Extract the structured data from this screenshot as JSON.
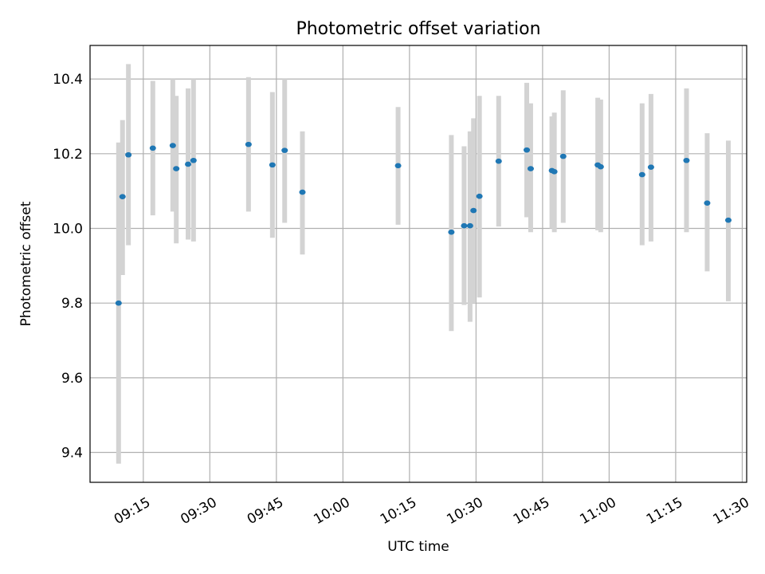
{
  "chart_data": {
    "type": "scatter",
    "title": "Photometric offset variation",
    "xlabel": "UTC time",
    "ylabel": "Photometric offset",
    "xlim": [
      "09:03",
      "11:31"
    ],
    "ylim": [
      9.32,
      10.49
    ],
    "grid": true,
    "x_ticks": [
      "09:15",
      "09:30",
      "09:45",
      "10:00",
      "10:15",
      "10:30",
      "10:45",
      "11:00",
      "11:15",
      "11:30"
    ],
    "y_ticks": [
      "9.4",
      "9.6",
      "9.8",
      "10.0",
      "10.2",
      "10.4"
    ],
    "error_color": "#d3d3d3",
    "marker_color": "#1f77b4",
    "points": [
      {
        "t": "09:09:26",
        "y": 9.8,
        "lo": 9.37,
        "hi": 10.23
      },
      {
        "t": "09:10:19",
        "y": 10.085,
        "lo": 9.875,
        "hi": 10.29
      },
      {
        "t": "09:11:39",
        "y": 10.197,
        "lo": 9.955,
        "hi": 10.44
      },
      {
        "t": "09:17:09",
        "y": 10.215,
        "lo": 10.035,
        "hi": 10.395
      },
      {
        "t": "09:21:39",
        "y": 10.222,
        "lo": 10.045,
        "hi": 10.4
      },
      {
        "t": "09:22:26",
        "y": 10.16,
        "lo": 9.96,
        "hi": 10.355
      },
      {
        "t": "09:25:06",
        "y": 10.172,
        "lo": 9.97,
        "hi": 10.375
      },
      {
        "t": "09:26:19",
        "y": 10.182,
        "lo": 9.965,
        "hi": 10.4
      },
      {
        "t": "09:38:43",
        "y": 10.225,
        "lo": 10.045,
        "hi": 10.405
      },
      {
        "t": "09:44:06",
        "y": 10.17,
        "lo": 9.975,
        "hi": 10.365
      },
      {
        "t": "09:46:52",
        "y": 10.209,
        "lo": 10.015,
        "hi": 10.4
      },
      {
        "t": "09:50:52",
        "y": 10.097,
        "lo": 9.93,
        "hi": 10.26
      },
      {
        "t": "10:12:26",
        "y": 10.168,
        "lo": 10.01,
        "hi": 10.325
      },
      {
        "t": "10:24:26",
        "y": 9.99,
        "lo": 9.725,
        "hi": 10.25
      },
      {
        "t": "10:27:19",
        "y": 10.007,
        "lo": 9.795,
        "hi": 10.22
      },
      {
        "t": "10:28:39",
        "y": 10.007,
        "lo": 9.75,
        "hi": 10.26
      },
      {
        "t": "10:29:26",
        "y": 10.048,
        "lo": 9.8,
        "hi": 10.295
      },
      {
        "t": "10:30:46",
        "y": 10.086,
        "lo": 9.815,
        "hi": 10.355
      },
      {
        "t": "10:35:06",
        "y": 10.18,
        "lo": 10.005,
        "hi": 10.355
      },
      {
        "t": "10:41:26",
        "y": 10.21,
        "lo": 10.03,
        "hi": 10.39
      },
      {
        "t": "10:42:19",
        "y": 10.16,
        "lo": 9.99,
        "hi": 10.335
      },
      {
        "t": "10:47:06",
        "y": 10.155,
        "lo": 10.0,
        "hi": 10.3
      },
      {
        "t": "10:47:39",
        "y": 10.152,
        "lo": 9.99,
        "hi": 10.31
      },
      {
        "t": "10:49:39",
        "y": 10.193,
        "lo": 10.015,
        "hi": 10.37
      },
      {
        "t": "10:57:26",
        "y": 10.17,
        "lo": 9.995,
        "hi": 10.35
      },
      {
        "t": "10:58:06",
        "y": 10.165,
        "lo": 9.99,
        "hi": 10.345
      },
      {
        "t": "11:07:26",
        "y": 10.144,
        "lo": 9.955,
        "hi": 10.335
      },
      {
        "t": "11:09:26",
        "y": 10.164,
        "lo": 9.965,
        "hi": 10.36
      },
      {
        "t": "11:17:26",
        "y": 10.182,
        "lo": 9.99,
        "hi": 10.375
      },
      {
        "t": "11:22:06",
        "y": 10.068,
        "lo": 9.885,
        "hi": 10.255
      },
      {
        "t": "11:26:52",
        "y": 10.022,
        "lo": 9.805,
        "hi": 10.235
      }
    ]
  }
}
